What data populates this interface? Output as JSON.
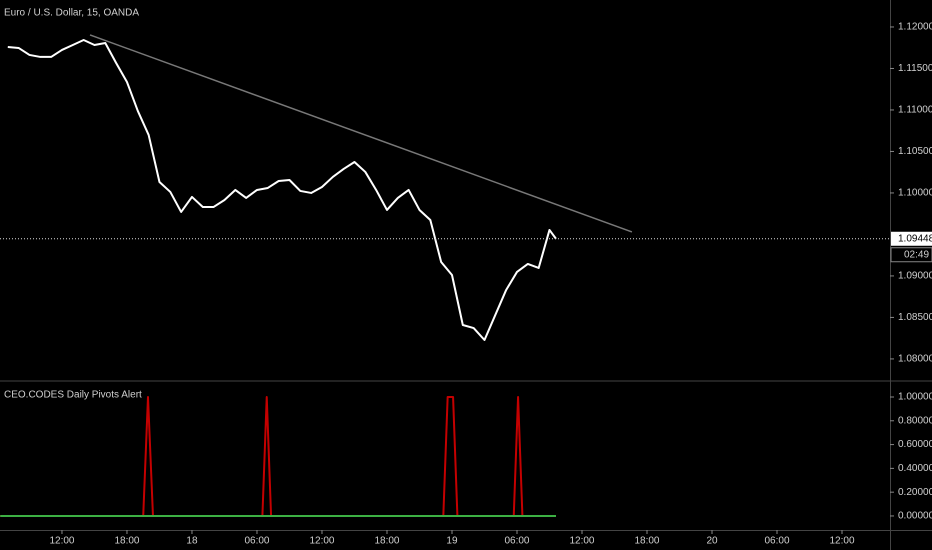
{
  "chart_data": [
    {
      "type": "line",
      "title": "Euro / U.S. Dollar, 15, OANDA",
      "x": [
        7,
        8,
        9,
        10,
        11,
        12,
        13,
        14,
        15,
        16,
        17,
        18,
        19,
        20,
        21,
        22,
        23,
        24,
        25,
        26,
        27,
        28,
        29,
        30,
        31,
        32,
        33,
        34,
        35,
        36,
        37,
        38,
        39,
        40,
        41,
        42,
        43,
        44,
        45,
        46,
        47,
        48,
        49,
        50,
        51,
        52,
        53,
        54,
        55,
        56,
        57,
        57.6
      ],
      "series": [
        {
          "color": "#ffffff",
          "values": [
            1.11759,
            1.11747,
            1.11663,
            1.11639,
            1.11639,
            1.11723,
            1.11783,
            1.11843,
            1.11783,
            1.11807,
            1.11566,
            1.11337,
            1.10988,
            1.10699,
            1.10132,
            1.10012,
            1.09771,
            1.09952,
            1.09831,
            1.09831,
            1.09915,
            1.10036,
            1.0994,
            1.10036,
            1.1006,
            1.10144,
            1.10156,
            1.10024,
            1.1,
            1.10072,
            1.10193,
            1.10289,
            1.10373,
            1.10253,
            1.10036,
            1.09795,
            1.0994,
            1.10036,
            1.09795,
            1.09674,
            1.09168,
            1.09011,
            1.08409,
            1.08372,
            1.08228,
            1.0853,
            1.08831,
            1.09048,
            1.09144,
            1.09096,
            1.09554,
            1.09448
          ]
        }
      ],
      "trendline": {
        "x": [
          14.59,
          64.61
        ],
        "values": [
          1.11904,
          1.0953
        ],
        "color": "#787878"
      },
      "last_price": 1.09448,
      "countdown": "02:49",
      "xlim": [
        6.28,
        88.43
      ],
      "ylim": [
        1.07746,
        1.12325
      ],
      "yticks": [
        {
          "value": 1.08,
          "label": "1.08000"
        },
        {
          "value": 1.085,
          "label": "1.08500"
        },
        {
          "value": 1.09,
          "label": "1.09000"
        },
        {
          "value": 1.1,
          "label": "1.10000"
        },
        {
          "value": 1.105,
          "label": "1.10500"
        },
        {
          "value": 1.11,
          "label": "1.11000"
        },
        {
          "value": 1.115,
          "label": "1.11500"
        },
        {
          "value": 1.12,
          "label": "1.12000"
        }
      ]
    },
    {
      "type": "line",
      "title": "CEO.CODES Daily Pivots Alert",
      "x": [
        6.3,
        19.5,
        19.94,
        20.4,
        30.5,
        30.9,
        31.3,
        47.2,
        47.6,
        48.1,
        48.5,
        53.7,
        54.1,
        54.5,
        57.6
      ],
      "series": [
        {
          "color": "#c40000",
          "values": [
            0,
            0,
            1,
            0,
            0,
            1,
            0,
            0,
            1,
            1,
            0,
            0,
            1,
            0,
            0
          ]
        },
        {
          "color": "#3cb043",
          "values": [
            0,
            0,
            0,
            0,
            0,
            0,
            0,
            0,
            0,
            0,
            0,
            0,
            0,
            0,
            0
          ]
        }
      ],
      "xlim": [
        6.28,
        88.43
      ],
      "ylim": [
        -0.118,
        1.126
      ],
      "yticks": [
        {
          "value": 0,
          "label": "0.00000"
        },
        {
          "value": 0.2,
          "label": "0.20000"
        },
        {
          "value": 0.4,
          "label": "0.40000"
        },
        {
          "value": 0.6,
          "label": "0.60000"
        },
        {
          "value": 0.8,
          "label": "0.80000"
        },
        {
          "value": 1,
          "label": "1.00000"
        }
      ],
      "xticks": [
        {
          "value": 12,
          "label": "12:00"
        },
        {
          "value": 18,
          "label": "18:00"
        },
        {
          "value": 24,
          "label": "18"
        },
        {
          "value": 30,
          "label": "06:00"
        },
        {
          "value": 36,
          "label": "12:00"
        },
        {
          "value": 42,
          "label": "18:00"
        },
        {
          "value": 48,
          "label": "19"
        },
        {
          "value": 54,
          "label": "06:00"
        },
        {
          "value": 60,
          "label": "12:00"
        },
        {
          "value": 66,
          "label": "18:00"
        },
        {
          "value": 72,
          "label": "20"
        },
        {
          "value": 78,
          "label": "06:00"
        },
        {
          "value": 84,
          "label": "12:00"
        }
      ]
    }
  ]
}
